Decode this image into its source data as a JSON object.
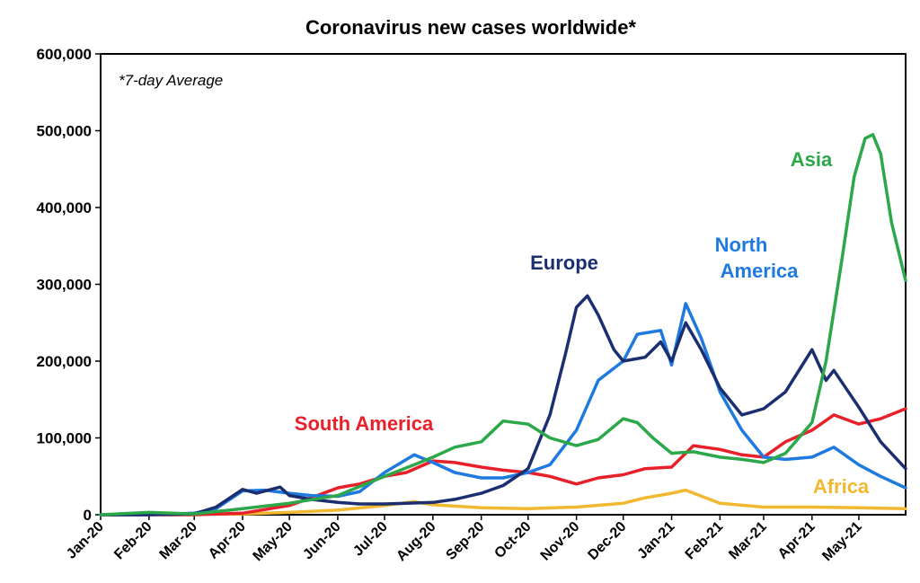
{
  "chart_data": {
    "type": "line",
    "title": "Coronavirus new cases worldwide*",
    "note": "*7-day Average",
    "xlabel": "",
    "ylabel": "",
    "ylim": [
      0,
      600000
    ],
    "yticks": [
      0,
      100000,
      200000,
      300000,
      400000,
      500000,
      600000
    ],
    "ytick_labels": [
      "0",
      "100,000",
      "200,000",
      "300,000",
      "400,000",
      "500,000",
      "600,000"
    ],
    "xtick_labels": [
      "Jan-20",
      "Feb-20",
      "Mar-20",
      "Apr-20",
      "May-20",
      "Jun-20",
      "Jul-20",
      "Aug-20",
      "Sep-20",
      "Oct-20",
      "Nov-20",
      "Dec-20",
      "Jan-21",
      "Feb-21",
      "Mar-21",
      "Apr-21",
      "May-21"
    ],
    "grid": false,
    "legend": "labels on lines",
    "series": [
      {
        "name": "Asia",
        "color": "#2ca84a",
        "points": [
          [
            "2020-01-01",
            0
          ],
          [
            "2020-02-01",
            3000
          ],
          [
            "2020-03-01",
            1000
          ],
          [
            "2020-04-01",
            8000
          ],
          [
            "2020-05-01",
            15000
          ],
          [
            "2020-06-01",
            25000
          ],
          [
            "2020-07-01",
            50000
          ],
          [
            "2020-07-20",
            65000
          ],
          [
            "2020-08-01",
            75000
          ],
          [
            "2020-08-15",
            88000
          ],
          [
            "2020-09-01",
            95000
          ],
          [
            "2020-09-15",
            122000
          ],
          [
            "2020-10-01",
            118000
          ],
          [
            "2020-10-15",
            100000
          ],
          [
            "2020-11-01",
            90000
          ],
          [
            "2020-11-15",
            98000
          ],
          [
            "2020-12-01",
            125000
          ],
          [
            "2020-12-10",
            120000
          ],
          [
            "2020-12-20",
            100000
          ],
          [
            "2021-01-01",
            80000
          ],
          [
            "2021-01-15",
            82000
          ],
          [
            "2021-02-01",
            75000
          ],
          [
            "2021-02-15",
            72000
          ],
          [
            "2021-03-01",
            68000
          ],
          [
            "2021-03-15",
            80000
          ],
          [
            "2021-04-01",
            120000
          ],
          [
            "2021-04-10",
            200000
          ],
          [
            "2021-04-20",
            330000
          ],
          [
            "2021-04-28",
            440000
          ],
          [
            "2021-05-05",
            490000
          ],
          [
            "2021-05-10",
            495000
          ],
          [
            "2021-05-15",
            470000
          ],
          [
            "2021-05-22",
            380000
          ],
          [
            "2021-05-31",
            305000
          ]
        ]
      },
      {
        "name": "Europe",
        "color": "#1b2f70",
        "points": [
          [
            "2020-01-01",
            0
          ],
          [
            "2020-02-01",
            0
          ],
          [
            "2020-03-01",
            1000
          ],
          [
            "2020-03-15",
            10000
          ],
          [
            "2020-04-01",
            33000
          ],
          [
            "2020-04-10",
            28000
          ],
          [
            "2020-04-25",
            36000
          ],
          [
            "2020-05-01",
            25000
          ],
          [
            "2020-05-15",
            20000
          ],
          [
            "2020-06-01",
            16000
          ],
          [
            "2020-06-15",
            14000
          ],
          [
            "2020-07-01",
            14000
          ],
          [
            "2020-07-15",
            15000
          ],
          [
            "2020-08-01",
            16000
          ],
          [
            "2020-08-15",
            20000
          ],
          [
            "2020-09-01",
            28000
          ],
          [
            "2020-09-15",
            38000
          ],
          [
            "2020-10-01",
            60000
          ],
          [
            "2020-10-15",
            130000
          ],
          [
            "2020-10-25",
            210000
          ],
          [
            "2020-11-01",
            270000
          ],
          [
            "2020-11-08",
            285000
          ],
          [
            "2020-11-15",
            260000
          ],
          [
            "2020-11-25",
            215000
          ],
          [
            "2020-12-01",
            200000
          ],
          [
            "2020-12-15",
            205000
          ],
          [
            "2020-12-25",
            225000
          ],
          [
            "2021-01-01",
            200000
          ],
          [
            "2021-01-10",
            250000
          ],
          [
            "2021-01-20",
            215000
          ],
          [
            "2021-02-01",
            165000
          ],
          [
            "2021-02-15",
            130000
          ],
          [
            "2021-03-01",
            138000
          ],
          [
            "2021-03-15",
            160000
          ],
          [
            "2021-04-01",
            215000
          ],
          [
            "2021-04-10",
            175000
          ],
          [
            "2021-04-15",
            188000
          ],
          [
            "2021-05-01",
            140000
          ],
          [
            "2021-05-15",
            95000
          ],
          [
            "2021-05-31",
            60000
          ]
        ]
      },
      {
        "name": "North America",
        "color": "#1f7ae0",
        "points": [
          [
            "2020-01-01",
            0
          ],
          [
            "2020-02-01",
            0
          ],
          [
            "2020-03-01",
            2000
          ],
          [
            "2020-03-15",
            8000
          ],
          [
            "2020-04-01",
            31000
          ],
          [
            "2020-04-15",
            32000
          ],
          [
            "2020-05-01",
            28000
          ],
          [
            "2020-05-15",
            25000
          ],
          [
            "2020-06-01",
            24000
          ],
          [
            "2020-06-15",
            30000
          ],
          [
            "2020-07-01",
            55000
          ],
          [
            "2020-07-20",
            78000
          ],
          [
            "2020-08-01",
            68000
          ],
          [
            "2020-08-15",
            55000
          ],
          [
            "2020-09-01",
            48000
          ],
          [
            "2020-09-15",
            48000
          ],
          [
            "2020-10-01",
            55000
          ],
          [
            "2020-10-15",
            65000
          ],
          [
            "2020-11-01",
            110000
          ],
          [
            "2020-11-15",
            175000
          ],
          [
            "2020-12-01",
            200000
          ],
          [
            "2020-12-10",
            235000
          ],
          [
            "2020-12-25",
            240000
          ],
          [
            "2021-01-01",
            195000
          ],
          [
            "2021-01-10",
            275000
          ],
          [
            "2021-01-20",
            230000
          ],
          [
            "2021-02-01",
            160000
          ],
          [
            "2021-02-15",
            110000
          ],
          [
            "2021-03-01",
            75000
          ],
          [
            "2021-03-15",
            72000
          ],
          [
            "2021-04-01",
            75000
          ],
          [
            "2021-04-15",
            88000
          ],
          [
            "2021-05-01",
            65000
          ],
          [
            "2021-05-15",
            50000
          ],
          [
            "2021-05-31",
            35000
          ]
        ]
      },
      {
        "name": "South America",
        "color": "#e8202a",
        "points": [
          [
            "2020-01-01",
            0
          ],
          [
            "2020-03-01",
            0
          ],
          [
            "2020-04-01",
            2000
          ],
          [
            "2020-05-01",
            12000
          ],
          [
            "2020-05-15",
            22000
          ],
          [
            "2020-06-01",
            35000
          ],
          [
            "2020-06-15",
            40000
          ],
          [
            "2020-07-01",
            50000
          ],
          [
            "2020-07-15",
            55000
          ],
          [
            "2020-08-01",
            70000
          ],
          [
            "2020-08-15",
            68000
          ],
          [
            "2020-09-01",
            62000
          ],
          [
            "2020-09-15",
            58000
          ],
          [
            "2020-10-01",
            55000
          ],
          [
            "2020-10-15",
            50000
          ],
          [
            "2020-11-01",
            40000
          ],
          [
            "2020-11-15",
            48000
          ],
          [
            "2020-12-01",
            52000
          ],
          [
            "2020-12-15",
            60000
          ],
          [
            "2021-01-01",
            62000
          ],
          [
            "2021-01-15",
            90000
          ],
          [
            "2021-02-01",
            85000
          ],
          [
            "2021-02-15",
            78000
          ],
          [
            "2021-03-01",
            75000
          ],
          [
            "2021-03-15",
            95000
          ],
          [
            "2021-04-01",
            110000
          ],
          [
            "2021-04-15",
            130000
          ],
          [
            "2021-05-01",
            118000
          ],
          [
            "2021-05-15",
            125000
          ],
          [
            "2021-05-31",
            138000
          ]
        ]
      },
      {
        "name": "Africa",
        "color": "#f2b830",
        "points": [
          [
            "2020-01-01",
            0
          ],
          [
            "2020-04-01",
            1000
          ],
          [
            "2020-05-01",
            3000
          ],
          [
            "2020-06-01",
            6000
          ],
          [
            "2020-07-01",
            12000
          ],
          [
            "2020-07-20",
            17000
          ],
          [
            "2020-08-01",
            13000
          ],
          [
            "2020-09-01",
            9000
          ],
          [
            "2020-10-01",
            8000
          ],
          [
            "2020-11-01",
            10000
          ],
          [
            "2020-12-01",
            15000
          ],
          [
            "2020-12-15",
            22000
          ],
          [
            "2021-01-01",
            28000
          ],
          [
            "2021-01-10",
            32000
          ],
          [
            "2021-02-01",
            15000
          ],
          [
            "2021-03-01",
            10000
          ],
          [
            "2021-04-01",
            10000
          ],
          [
            "2021-05-01",
            9000
          ],
          [
            "2021-05-31",
            8000
          ]
        ]
      }
    ]
  }
}
